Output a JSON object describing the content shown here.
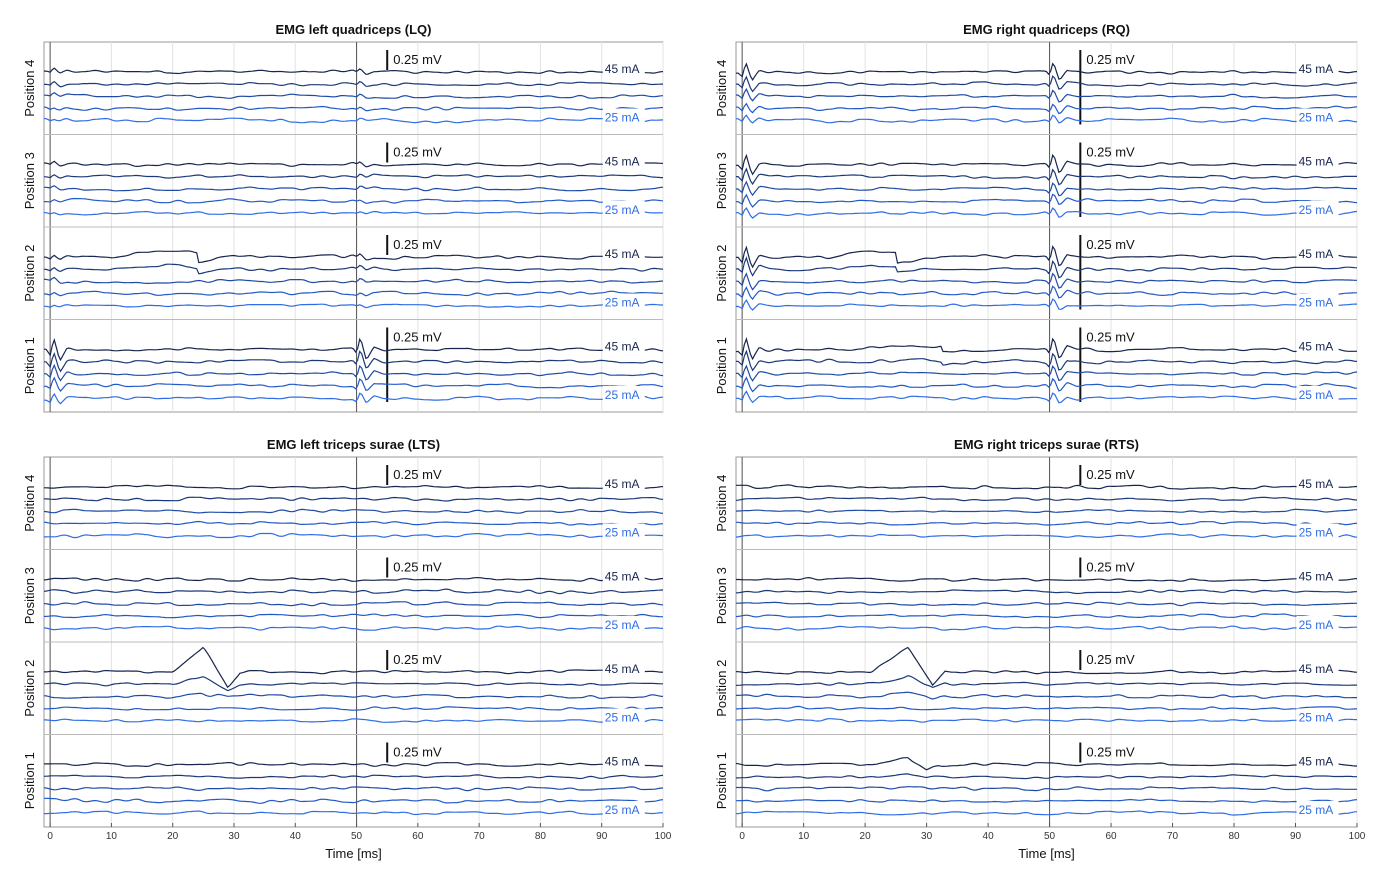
{
  "chart_data": {
    "type": "line",
    "axis": {
      "xlim": [
        -1,
        100
      ],
      "xticks": [
        0,
        10,
        20,
        30,
        40,
        50,
        60,
        70,
        80,
        90,
        100
      ],
      "xlabel": "Time [ms]",
      "grid": true,
      "stim_marker_ms": 50
    },
    "scale_bar_label": "0.25 mV",
    "intensity_labels": {
      "top": "45 mA",
      "bottom": "25 mA"
    },
    "intensities_mA": [
      45,
      40,
      35,
      30,
      25
    ],
    "series_colors": [
      "#17254f",
      "#1b3878",
      "#1f4ba6",
      "#2259c8",
      "#2f6de6"
    ],
    "panels": [
      {
        "id": "LQ",
        "title": "EMG left quadriceps (LQ)",
        "show_xaxis": false,
        "rows": [
          {
            "label": "Position 4",
            "strength": 0.25,
            "onset": null
          },
          {
            "label": "Position 3",
            "strength": 0.2,
            "onset": null
          },
          {
            "label": "Position 2",
            "strength": 0.25,
            "onset": null,
            "bump": {
              "t0": 10,
              "t1": 30,
              "amp": 0.55
            }
          },
          {
            "label": "Position 1",
            "strength": 1.0,
            "onset": null
          }
        ]
      },
      {
        "id": "RQ",
        "title": "EMG right quadriceps (RQ)",
        "show_xaxis": false,
        "rows": [
          {
            "label": "Position 4",
            "strength": 0.8,
            "onset": null
          },
          {
            "label": "Position 3",
            "strength": 0.9,
            "onset": null
          },
          {
            "label": "Position 2",
            "strength": 1.0,
            "onset": null,
            "bump": {
              "t0": 14,
              "t1": 30,
              "amp": 0.6
            }
          },
          {
            "label": "Position 1",
            "strength": 1.0,
            "onset": null,
            "bump": {
              "t0": 15,
              "t1": 40,
              "amp": 0.3
            }
          }
        ]
      },
      {
        "id": "LTS",
        "title": "EMG left triceps surae (LTS)",
        "show_xaxis": true,
        "rows": [
          {
            "label": "Position 4",
            "strength": 0.0,
            "onset": null
          },
          {
            "label": "Position 3",
            "strength": 0.0,
            "onset": null
          },
          {
            "label": "Position 2",
            "strength": 0.0,
            "onset": null,
            "mep": {
              "t0": 20,
              "peak": 25,
              "t1": 29,
              "amp": 1.0
            }
          },
          {
            "label": "Position 1",
            "strength": 0.0,
            "onset": null
          }
        ]
      },
      {
        "id": "RTS",
        "title": "EMG right triceps surae (RTS)",
        "show_xaxis": true,
        "rows": [
          {
            "label": "Position 4",
            "strength": 0.0,
            "onset": null
          },
          {
            "label": "Position 3",
            "strength": 0.0,
            "onset": null
          },
          {
            "label": "Position 2",
            "strength": 0.0,
            "onset": null,
            "mep": {
              "t0": 21,
              "peak": 27,
              "t1": 31,
              "amp": 1.0
            }
          },
          {
            "label": "Position 1",
            "strength": 0.0,
            "onset": null,
            "mep": {
              "t0": 22,
              "peak": 27,
              "t1": 30,
              "amp": 0.35
            }
          }
        ]
      }
    ]
  }
}
